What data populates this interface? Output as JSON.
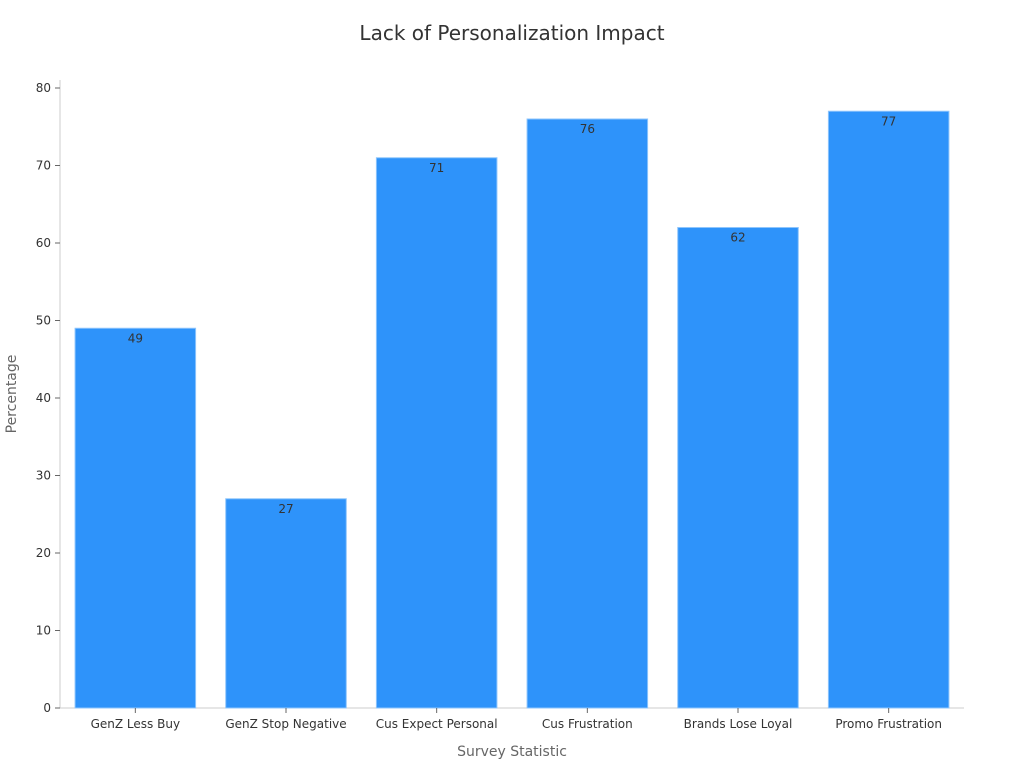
{
  "chart_data": {
    "type": "bar",
    "title": "Lack of Personalization Impact",
    "xlabel": "Survey Statistic",
    "ylabel": "Percentage",
    "categories": [
      "GenZ Less Buy",
      "GenZ Stop Negative",
      "Cus Expect Personal",
      "Cus Frustration",
      "Brands Lose Loyal",
      "Promo Frustration"
    ],
    "values": [
      49,
      27,
      71,
      76,
      62,
      77
    ],
    "ylim": [
      0,
      80
    ],
    "yticks": [
      0,
      10,
      20,
      30,
      40,
      50,
      60,
      70,
      80
    ],
    "bar_color": "#2e93fa",
    "bar_edge_color": "#8ec5fc",
    "grid": false,
    "legend": "none"
  }
}
